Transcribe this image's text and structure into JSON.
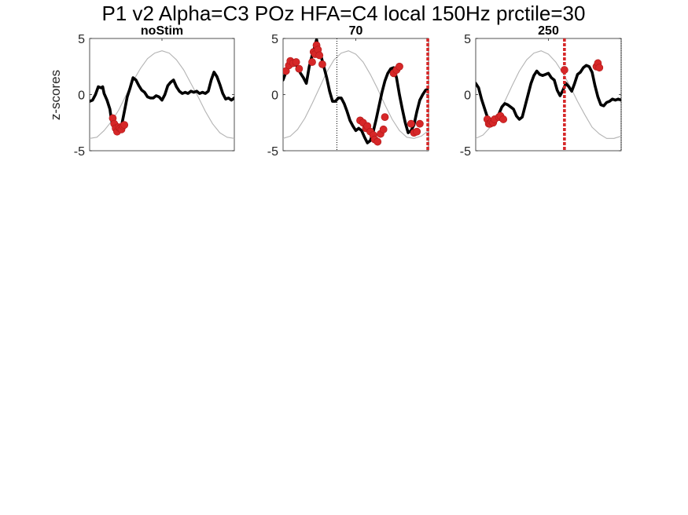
{
  "figure": {
    "title": "P1 v2 Alpha=C3 POz HFA=C4 local 150Hz prctile=30",
    "ylabel": "z-scores"
  },
  "chart_data": [
    {
      "type": "line",
      "title": "noStim",
      "xlim": [
        0,
        100
      ],
      "ylim": [
        -5,
        5
      ],
      "yticks": [
        -5,
        0,
        5
      ],
      "grid": false,
      "series": [
        {
          "color": "#000000",
          "points": [
            [
              0,
              -0.6
            ],
            [
              2,
              -0.5
            ],
            [
              4,
              0.0
            ],
            [
              6,
              0.7
            ],
            [
              8,
              0.6
            ],
            [
              9,
              0.7
            ],
            [
              10,
              0.1
            ],
            [
              12,
              -0.5
            ],
            [
              14,
              -1.3
            ],
            [
              15,
              -2.2
            ],
            [
              16,
              -2.7
            ],
            [
              17,
              -3.1
            ],
            [
              18,
              -3.3
            ],
            [
              20,
              -3.1
            ],
            [
              22,
              -2.8
            ],
            [
              24,
              -1.5
            ],
            [
              26,
              -0.2
            ],
            [
              28,
              0.6
            ],
            [
              30,
              1.5
            ],
            [
              32,
              1.3
            ],
            [
              34,
              0.8
            ],
            [
              36,
              0.4
            ],
            [
              38,
              0.2
            ],
            [
              40,
              -0.2
            ],
            [
              42,
              -0.3
            ],
            [
              44,
              -0.3
            ],
            [
              46,
              -0.1
            ],
            [
              48,
              -0.2
            ],
            [
              50,
              -0.5
            ],
            [
              52,
              0.0
            ],
            [
              54,
              0.8
            ],
            [
              56,
              1.1
            ],
            [
              58,
              1.3
            ],
            [
              60,
              0.7
            ],
            [
              62,
              0.3
            ],
            [
              64,
              0.1
            ],
            [
              66,
              0.2
            ],
            [
              68,
              0.1
            ],
            [
              70,
              0.3
            ],
            [
              72,
              0.2
            ],
            [
              74,
              0.3
            ],
            [
              76,
              0.1
            ],
            [
              78,
              0.2
            ],
            [
              80,
              0.1
            ],
            [
              82,
              0.3
            ],
            [
              84,
              1.3
            ],
            [
              86,
              2.0
            ],
            [
              88,
              1.6
            ],
            [
              90,
              0.9
            ],
            [
              92,
              0.1
            ],
            [
              94,
              -0.4
            ],
            [
              96,
              -0.3
            ],
            [
              98,
              -0.5
            ],
            [
              100,
              -0.3
            ]
          ]
        },
        {
          "color": "#b3b3b3",
          "points": [
            [
              0,
              -3.9
            ],
            [
              5,
              -3.8
            ],
            [
              10,
              -3.2
            ],
            [
              15,
              -2.4
            ],
            [
              20,
              -1.4
            ],
            [
              25,
              -0.1
            ],
            [
              30,
              1.2
            ],
            [
              35,
              2.3
            ],
            [
              40,
              3.2
            ],
            [
              45,
              3.7
            ],
            [
              50,
              3.9
            ],
            [
              55,
              3.7
            ],
            [
              60,
              3.1
            ],
            [
              65,
              2.2
            ],
            [
              70,
              1.0
            ],
            [
              75,
              -0.2
            ],
            [
              80,
              -1.5
            ],
            [
              85,
              -2.6
            ],
            [
              90,
              -3.4
            ],
            [
              95,
              -3.8
            ],
            [
              100,
              -3.9
            ]
          ]
        }
      ],
      "markers": {
        "color": "#d62728",
        "points": [
          [
            16,
            -2.1
          ],
          [
            17,
            -2.6
          ],
          [
            18,
            -3.0
          ],
          [
            19,
            -3.3
          ],
          [
            20,
            -2.9
          ],
          [
            21,
            -3.0
          ],
          [
            22,
            -3.1
          ],
          [
            23,
            -2.8
          ],
          [
            24,
            -2.7
          ]
        ]
      },
      "vlines": []
    },
    {
      "type": "line",
      "title": "70",
      "xlim": [
        0,
        100
      ],
      "ylim": [
        -5,
        5
      ],
      "yticks": [
        -5,
        0,
        5
      ],
      "grid": false,
      "series": [
        {
          "color": "#000000",
          "points": [
            [
              0,
              1.3
            ],
            [
              2,
              2.0
            ],
            [
              4,
              2.6
            ],
            [
              6,
              3.0
            ],
            [
              8,
              2.9
            ],
            [
              10,
              2.4
            ],
            [
              12,
              1.9
            ],
            [
              14,
              1.5
            ],
            [
              16,
              1.0
            ],
            [
              18,
              2.5
            ],
            [
              20,
              3.5
            ],
            [
              21,
              3.9
            ],
            [
              22,
              4.4
            ],
            [
              23,
              4.9
            ],
            [
              24,
              4.3
            ],
            [
              26,
              3.5
            ],
            [
              28,
              2.5
            ],
            [
              30,
              1.5
            ],
            [
              32,
              0.3
            ],
            [
              34,
              -0.6
            ],
            [
              36,
              -0.6
            ],
            [
              38,
              -0.3
            ],
            [
              40,
              -0.3
            ],
            [
              42,
              -0.8
            ],
            [
              44,
              -1.5
            ],
            [
              46,
              -2.3
            ],
            [
              48,
              -2.8
            ],
            [
              50,
              -3.2
            ],
            [
              52,
              -3.0
            ],
            [
              54,
              -3.2
            ],
            [
              56,
              -3.8
            ],
            [
              58,
              -4.3
            ],
            [
              60,
              -4.1
            ],
            [
              62,
              -3.3
            ],
            [
              64,
              -2.2
            ],
            [
              66,
              -1.0
            ],
            [
              68,
              0.2
            ],
            [
              70,
              1.2
            ],
            [
              72,
              1.9
            ],
            [
              74,
              2.3
            ],
            [
              76,
              2.4
            ],
            [
              78,
              1.5
            ],
            [
              80,
              0.0
            ],
            [
              82,
              -1.3
            ],
            [
              84,
              -2.5
            ],
            [
              86,
              -3.4
            ],
            [
              88,
              -3.2
            ],
            [
              90,
              -2.7
            ],
            [
              92,
              -1.5
            ],
            [
              94,
              -0.5
            ],
            [
              96,
              0.0
            ],
            [
              98,
              0.4
            ],
            [
              100,
              0.5
            ]
          ]
        },
        {
          "color": "#b3b3b3",
          "points": [
            [
              0,
              -3.9
            ],
            [
              5,
              -3.7
            ],
            [
              10,
              -3.1
            ],
            [
              15,
              -2.1
            ],
            [
              20,
              -0.8
            ],
            [
              25,
              0.6
            ],
            [
              30,
              2.0
            ],
            [
              35,
              3.1
            ],
            [
              40,
              3.7
            ],
            [
              45,
              3.9
            ],
            [
              50,
              3.6
            ],
            [
              55,
              2.9
            ],
            [
              60,
              1.8
            ],
            [
              65,
              0.5
            ],
            [
              70,
              -0.9
            ],
            [
              75,
              -2.2
            ],
            [
              80,
              -3.2
            ],
            [
              85,
              -3.8
            ],
            [
              90,
              -3.9
            ],
            [
              95,
              -3.7
            ],
            [
              100,
              -3.2
            ]
          ]
        }
      ],
      "markers": {
        "color": "#d62728",
        "points": [
          [
            2,
            2.1
          ],
          [
            4,
            2.6
          ],
          [
            5,
            3.0
          ],
          [
            7,
            2.8
          ],
          [
            9,
            2.9
          ],
          [
            11,
            2.3
          ],
          [
            20,
            2.9
          ],
          [
            21,
            3.8
          ],
          [
            22,
            3.6
          ],
          [
            23,
            4.4
          ],
          [
            24,
            4.0
          ],
          [
            25,
            3.5
          ],
          [
            27,
            2.7
          ],
          [
            53,
            -2.3
          ],
          [
            55,
            -2.5
          ],
          [
            57,
            -3.0
          ],
          [
            58,
            -2.8
          ],
          [
            60,
            -3.3
          ],
          [
            62,
            -3.6
          ],
          [
            63,
            -4.0
          ],
          [
            65,
            -4.2
          ],
          [
            67,
            -3.5
          ],
          [
            69,
            -3.1
          ],
          [
            70,
            -2.0
          ],
          [
            76,
            1.9
          ],
          [
            78,
            2.2
          ],
          [
            80,
            2.5
          ],
          [
            88,
            -2.6
          ],
          [
            90,
            -3.4
          ],
          [
            92,
            -3.3
          ],
          [
            94,
            -2.6
          ]
        ]
      },
      "vlines": [
        {
          "x": 37,
          "style": "dotted",
          "color": "#000000"
        },
        {
          "x": 99.5,
          "style": "dotted",
          "color": "#000000"
        },
        {
          "x": 99.5,
          "style": "dashed-red",
          "color": "#d62728"
        }
      ]
    },
    {
      "type": "line",
      "title": "250",
      "xlim": [
        0,
        100
      ],
      "ylim": [
        -5,
        5
      ],
      "yticks": [
        -5,
        0,
        5
      ],
      "grid": false,
      "series": [
        {
          "color": "#000000",
          "points": [
            [
              0,
              1.0
            ],
            [
              2,
              0.6
            ],
            [
              4,
              -0.4
            ],
            [
              6,
              -1.2
            ],
            [
              8,
              -2.0
            ],
            [
              10,
              -2.6
            ],
            [
              12,
              -2.5
            ],
            [
              14,
              -2.2
            ],
            [
              16,
              -1.7
            ],
            [
              18,
              -1.1
            ],
            [
              20,
              -0.8
            ],
            [
              22,
              -0.9
            ],
            [
              24,
              -1.1
            ],
            [
              26,
              -1.3
            ],
            [
              28,
              -1.9
            ],
            [
              30,
              -2.2
            ],
            [
              32,
              -2.0
            ],
            [
              34,
              -1.0
            ],
            [
              36,
              0.0
            ],
            [
              38,
              1.0
            ],
            [
              40,
              1.7
            ],
            [
              42,
              2.1
            ],
            [
              44,
              1.8
            ],
            [
              46,
              1.7
            ],
            [
              48,
              1.8
            ],
            [
              50,
              1.9
            ],
            [
              52,
              1.5
            ],
            [
              54,
              1.3
            ],
            [
              56,
              0.4
            ],
            [
              58,
              -0.1
            ],
            [
              60,
              0.4
            ],
            [
              62,
              1.0
            ],
            [
              64,
              0.7
            ],
            [
              66,
              0.3
            ],
            [
              68,
              1.0
            ],
            [
              70,
              1.8
            ],
            [
              72,
              2.0
            ],
            [
              74,
              2.4
            ],
            [
              76,
              2.6
            ],
            [
              78,
              2.5
            ],
            [
              80,
              2.0
            ],
            [
              82,
              0.8
            ],
            [
              84,
              -0.2
            ],
            [
              86,
              -0.9
            ],
            [
              88,
              -1.0
            ],
            [
              90,
              -0.7
            ],
            [
              92,
              -0.6
            ],
            [
              94,
              -0.4
            ],
            [
              96,
              -0.5
            ],
            [
              98,
              -0.4
            ],
            [
              100,
              -0.5
            ]
          ]
        },
        {
          "color": "#b3b3b3",
          "points": [
            [
              0,
              -3.9
            ],
            [
              5,
              -3.6
            ],
            [
              10,
              -2.9
            ],
            [
              15,
              -1.9
            ],
            [
              20,
              -0.6
            ],
            [
              25,
              0.8
            ],
            [
              30,
              2.1
            ],
            [
              35,
              3.1
            ],
            [
              40,
              3.7
            ],
            [
              45,
              3.9
            ],
            [
              50,
              3.6
            ],
            [
              55,
              2.9
            ],
            [
              60,
              1.9
            ],
            [
              65,
              0.7
            ],
            [
              70,
              -0.6
            ],
            [
              75,
              -1.8
            ],
            [
              80,
              -2.9
            ],
            [
              85,
              -3.5
            ],
            [
              90,
              -3.9
            ],
            [
              95,
              -3.9
            ],
            [
              100,
              -3.7
            ]
          ]
        }
      ],
      "markers": {
        "color": "#d62728",
        "points": [
          [
            8,
            -2.2
          ],
          [
            9,
            -2.6
          ],
          [
            10,
            -2.6
          ],
          [
            11,
            -2.4
          ],
          [
            12,
            -2.5
          ],
          [
            13,
            -2.2
          ],
          [
            16,
            -2.0
          ],
          [
            17,
            -1.9
          ],
          [
            19,
            -2.2
          ],
          [
            61,
            2.2
          ],
          [
            83,
            2.5
          ],
          [
            84,
            2.8
          ],
          [
            85,
            2.4
          ]
        ]
      },
      "vlines": [
        {
          "x": 61,
          "style": "dashed-red",
          "color": "#d62728"
        },
        {
          "x": 100,
          "style": "dotted",
          "color": "#000000"
        },
        {
          "x": 101,
          "style": "dotted",
          "color": "#000000"
        }
      ]
    }
  ]
}
